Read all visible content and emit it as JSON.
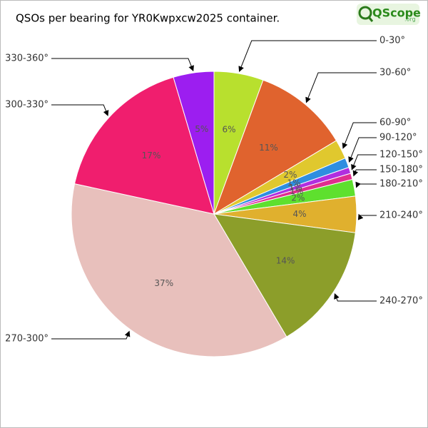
{
  "chart_data": {
    "type": "pie",
    "title": "QSOs per bearing for YR0Kwpxcw2025 container.",
    "logo": "QScope",
    "logo_suffix": ".org",
    "categories": [
      "0-30°",
      "30-60°",
      "60-90°",
      "90-120°",
      "120-150°",
      "150-180°",
      "180-210°",
      "210-240°",
      "240-270°",
      "270-300°",
      "300-330°",
      "330-360°"
    ],
    "values": [
      5.6,
      10.8,
      2.2,
      1.1,
      0.7,
      0.7,
      1.9,
      4.1,
      14.4,
      36.9,
      17,
      4.6
    ],
    "value_labels": [
      "6%",
      "11%",
      "2%",
      "1%",
      "1%",
      "1%",
      "2%",
      "4%",
      "14%",
      "37%",
      "17%",
      "5%"
    ],
    "colors": [
      "#b8e02e",
      "#e0632e",
      "#e0c82e",
      "#2e8ee0",
      "#b02ee0",
      "#e02e8e",
      "#5ee02e",
      "#e0b02e",
      "#8c9e2a",
      "#e8c0bc",
      "#f01e6e",
      "#9c1ef0"
    ]
  }
}
